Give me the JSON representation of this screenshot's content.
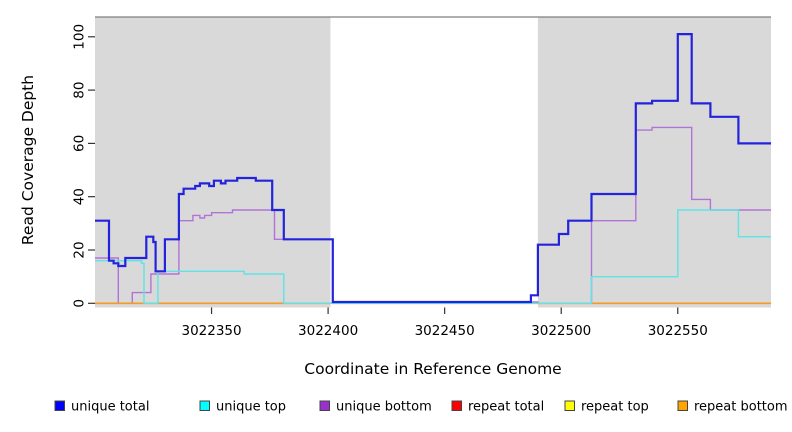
{
  "figure": {
    "y_axis_label": "Read Coverage Depth",
    "x_axis_label": "Coordinate in Reference Genome"
  },
  "chart_data": {
    "type": "line",
    "subtype": "step",
    "title": "",
    "xlabel": "Coordinate in Reference Genome",
    "ylabel": "Read Coverage Depth",
    "xlim": [
      3022300,
      3022590
    ],
    "ylim": [
      0,
      101
    ],
    "grid": false,
    "legend_position": "bottom",
    "x_ticks": [
      3022350,
      3022400,
      3022450,
      3022500,
      3022550
    ],
    "y_ticks": [
      0,
      20,
      40,
      60,
      80,
      100
    ],
    "background_shading": {
      "color": "#d9d9d9",
      "gap_color": "#ffffff",
      "regions": [
        [
          3022300,
          3022401
        ],
        [
          3022490,
          3022590
        ]
      ],
      "note": "white band = no-data gap between 3022401 and 3022490"
    },
    "series": [
      {
        "name": "unique total",
        "color": "#2323dd",
        "width": 2.2,
        "points": [
          [
            3022300,
            31
          ],
          [
            3022306,
            16
          ],
          [
            3022308,
            15
          ],
          [
            3022310,
            14
          ],
          [
            3022313,
            17
          ],
          [
            3022322,
            25
          ],
          [
            3022325,
            23
          ],
          [
            3022326,
            12
          ],
          [
            3022330,
            24
          ],
          [
            3022336,
            41
          ],
          [
            3022338,
            43
          ],
          [
            3022343,
            44
          ],
          [
            3022345,
            45
          ],
          [
            3022349,
            44
          ],
          [
            3022351,
            46
          ],
          [
            3022354,
            45
          ],
          [
            3022356,
            46
          ],
          [
            3022361,
            47
          ],
          [
            3022369,
            46
          ],
          [
            3022376,
            35
          ],
          [
            3022381,
            24
          ],
          [
            3022402,
            0.5
          ],
          [
            3022487,
            3
          ],
          [
            3022490,
            22
          ],
          [
            3022499,
            26
          ],
          [
            3022503,
            31
          ],
          [
            3022513,
            41
          ],
          [
            3022532,
            75
          ],
          [
            3022539,
            76
          ],
          [
            3022550,
            101
          ],
          [
            3022556,
            75
          ],
          [
            3022564,
            70
          ],
          [
            3022576,
            60
          ],
          [
            3022590,
            60
          ]
        ]
      },
      {
        "name": "unique top",
        "color": "#5fe3e6",
        "width": 1.4,
        "points": [
          [
            3022300,
            16
          ],
          [
            3022320,
            15
          ],
          [
            3022321,
            0
          ],
          [
            3022327,
            12
          ],
          [
            3022364,
            11
          ],
          [
            3022381,
            0
          ],
          [
            3022513,
            10
          ],
          [
            3022550,
            35
          ],
          [
            3022576,
            25
          ],
          [
            3022590,
            25
          ]
        ]
      },
      {
        "name": "unique bottom",
        "color": "#b273d8",
        "width": 1.4,
        "points": [
          [
            3022300,
            17
          ],
          [
            3022310,
            0
          ],
          [
            3022316,
            4
          ],
          [
            3022324,
            11
          ],
          [
            3022336,
            31
          ],
          [
            3022342,
            33
          ],
          [
            3022345,
            32
          ],
          [
            3022347,
            33
          ],
          [
            3022350,
            34
          ],
          [
            3022359,
            35
          ],
          [
            3022377,
            24
          ],
          [
            3022402,
            0.5
          ],
          [
            3022490,
            0
          ],
          [
            3022513,
            31
          ],
          [
            3022532,
            65
          ],
          [
            3022539,
            66
          ],
          [
            3022556,
            39
          ],
          [
            3022564,
            35
          ],
          [
            3022590,
            35
          ]
        ]
      },
      {
        "name": "repeat total",
        "color": "#ff0000",
        "width": 1.4,
        "points": [
          [
            3022300,
            0
          ],
          [
            3022590,
            0
          ]
        ]
      },
      {
        "name": "repeat top",
        "color": "#ffff00",
        "width": 1.4,
        "points": [
          [
            3022300,
            0
          ],
          [
            3022590,
            0
          ]
        ]
      },
      {
        "name": "repeat bottom",
        "color": "#f59b20",
        "width": 1.6,
        "points": [
          [
            3022300,
            0
          ],
          [
            3022590,
            0
          ]
        ]
      }
    ],
    "draw_order": [
      "repeat total",
      "repeat top",
      "unique bottom",
      "repeat bottom",
      "unique top",
      "unique total"
    ]
  },
  "legend": {
    "items": [
      {
        "label": "unique total",
        "swatch_color": "#0000ff"
      },
      {
        "label": "unique top",
        "swatch_color": "#00ffff"
      },
      {
        "label": "unique bottom",
        "swatch_color": "#9932cc"
      },
      {
        "label": "repeat total",
        "swatch_color": "#ff0000"
      },
      {
        "label": "repeat top",
        "swatch_color": "#ffff00"
      },
      {
        "label": "repeat bottom",
        "swatch_color": "#ffa500"
      }
    ]
  }
}
